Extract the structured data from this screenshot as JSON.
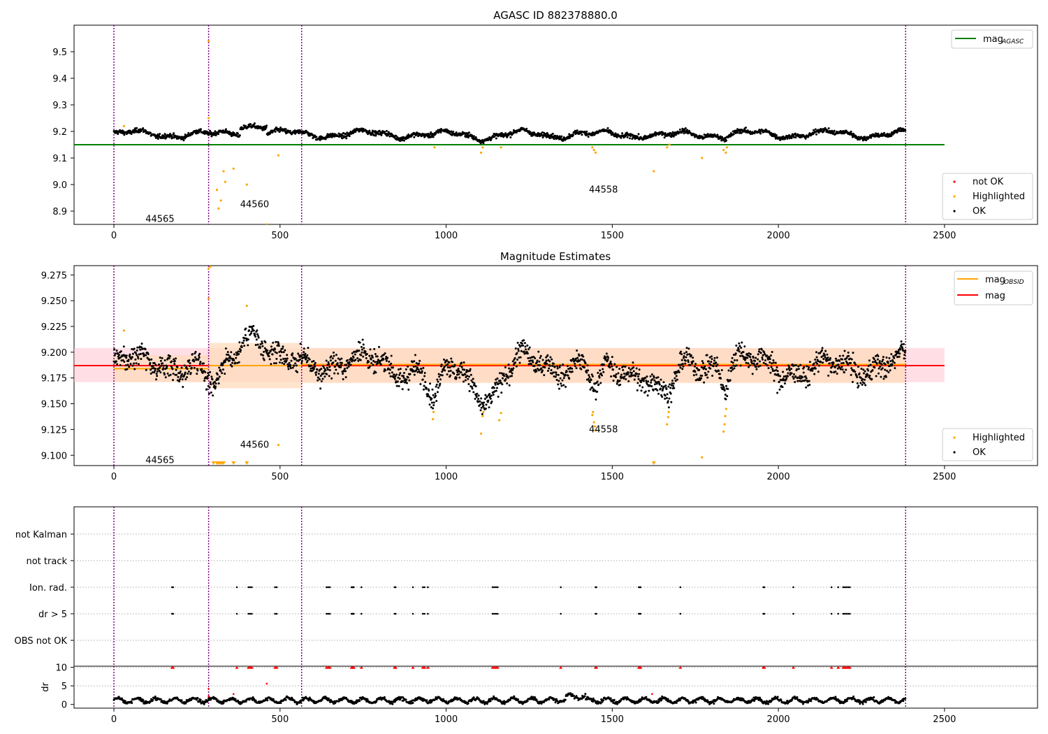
{
  "colors": {
    "ok": "#000000",
    "highlighted": "#ffa500",
    "not_ok": "#ff0000",
    "mag_agasc": "#008000",
    "mag_obsid": "#ffa500",
    "mag": "#ff0000",
    "obsid_boundary": "#800080",
    "mag_band": "#ffc0cb",
    "obsid_band": "#ffdab9"
  },
  "obsid_boundaries": [
    0,
    285,
    565,
    2383
  ],
  "chart_data": [
    {
      "type": "scatter",
      "title": "AGASC ID 882378880.0",
      "xlim": [
        -120,
        2780
      ],
      "ylim": [
        8.85,
        9.6
      ],
      "xticks": [
        0,
        500,
        1000,
        1500,
        2000,
        2500
      ],
      "yticks": [
        8.9,
        9.0,
        9.1,
        9.2,
        9.3,
        9.4,
        9.5
      ],
      "ytick_labels": [
        "8.9",
        "9.0",
        "9.1",
        "9.2",
        "9.3",
        "9.4",
        "9.5"
      ],
      "lines": [
        {
          "name": "mag_AGASC",
          "y": 9.15,
          "x": [
            -120,
            2500
          ]
        }
      ],
      "legend_lines": [
        "mag",
        "AGASC"
      ],
      "legend_points": [
        "not OK",
        "Highlighted",
        "OK"
      ],
      "obsid_labels": [
        {
          "text": "44565",
          "x": 95,
          "y": 8.87
        },
        {
          "text": "44560",
          "x": 380,
          "y": 8.925
        },
        {
          "text": "44558",
          "x": 1430,
          "y": 8.98
        }
      ],
      "highlighted_points": [
        [
          30,
          9.22
        ],
        [
          285,
          9.54
        ],
        [
          285,
          9.25
        ],
        [
          310,
          8.98
        ],
        [
          315,
          8.91
        ],
        [
          322,
          8.94
        ],
        [
          330,
          9.05
        ],
        [
          335,
          9.01
        ],
        [
          360,
          9.06
        ],
        [
          400,
          9.0
        ],
        [
          460,
          8.85
        ],
        [
          495,
          9.11
        ],
        [
          965,
          9.14
        ],
        [
          1105,
          9.12
        ],
        [
          1110,
          9.14
        ],
        [
          1165,
          9.14
        ],
        [
          1440,
          9.14
        ],
        [
          1445,
          9.13
        ],
        [
          1450,
          9.12
        ],
        [
          1625,
          9.05
        ],
        [
          1665,
          9.14
        ],
        [
          1672,
          9.15
        ],
        [
          1770,
          9.1
        ],
        [
          1835,
          9.13
        ],
        [
          1842,
          9.12
        ],
        [
          1845,
          9.14
        ]
      ]
    },
    {
      "type": "scatter",
      "title": "Magnitude Estimates",
      "xlim": [
        -120,
        2780
      ],
      "ylim": [
        9.09,
        9.284
      ],
      "xticks": [
        0,
        500,
        1000,
        1500,
        2000,
        2500
      ],
      "yticks": [
        9.1,
        9.125,
        9.15,
        9.175,
        9.2,
        9.225,
        9.25,
        9.275
      ],
      "ytick_labels": [
        "9.100",
        "9.125",
        "9.150",
        "9.175",
        "9.200",
        "9.225",
        "9.250",
        "9.275"
      ],
      "mag": 9.187,
      "mag_band": [
        9.171,
        9.204
      ],
      "obsid_mags": [
        {
          "x": [
            0,
            285
          ],
          "mag": 9.184,
          "band": [
            9.171,
            9.197
          ]
        },
        {
          "x": [
            285,
            565
          ],
          "mag": 9.187,
          "band": [
            9.165,
            9.209
          ]
        },
        {
          "x": [
            565,
            2383
          ],
          "mag": 9.188,
          "band": [
            9.17,
            9.204
          ]
        }
      ],
      "legend_lines": [
        "mag",
        "OBSID",
        "mag"
      ],
      "legend_points": [
        "Highlighted",
        "OK"
      ],
      "obsid_labels": [
        {
          "text": "44565",
          "x": 95,
          "y": 9.095
        },
        {
          "text": "44560",
          "x": 380,
          "y": 9.11
        },
        {
          "text": "44558",
          "x": 1430,
          "y": 9.125
        }
      ],
      "highlighted_points": [
        [
          30,
          9.221
        ],
        [
          285,
          9.281
        ],
        [
          290,
          9.283
        ],
        [
          285,
          9.252
        ],
        [
          400,
          9.245
        ],
        [
          495,
          9.11
        ],
        [
          960,
          9.135
        ],
        [
          962,
          9.142
        ],
        [
          1105,
          9.121
        ],
        [
          1110,
          9.138
        ],
        [
          1112,
          9.142
        ],
        [
          1160,
          9.134
        ],
        [
          1165,
          9.141
        ],
        [
          1440,
          9.139
        ],
        [
          1442,
          9.142
        ],
        [
          1445,
          9.132
        ],
        [
          1448,
          9.128
        ],
        [
          1450,
          9.124
        ],
        [
          1665,
          9.13
        ],
        [
          1668,
          9.137
        ],
        [
          1670,
          9.142
        ],
        [
          1770,
          9.098
        ],
        [
          1835,
          9.123
        ],
        [
          1838,
          9.13
        ],
        [
          1840,
          9.138
        ],
        [
          1843,
          9.145
        ]
      ],
      "clipped_points": [
        300,
        310,
        315,
        320,
        325,
        330,
        360,
        400,
        1625
      ]
    },
    {
      "type": "scatter",
      "title": "",
      "xlim": [
        -120,
        2780
      ],
      "categories": [
        "not Kalman",
        "not track",
        "Ion. rad.",
        "dr > 5",
        "OBS not OK"
      ],
      "flag_x": [
        175,
        178,
        370,
        405,
        410,
        415,
        485,
        490,
        640,
        645,
        650,
        715,
        718,
        720,
        722,
        745,
        845,
        848,
        900,
        930,
        935,
        945,
        1140,
        1145,
        1150,
        1155,
        1345,
        1450,
        1452,
        1580,
        1583,
        1585,
        1705,
        1955,
        1958,
        2045,
        2160,
        2180,
        2195,
        2200,
        2205,
        2210,
        2215
      ],
      "flag_rows": [
        "Ion. rad.",
        "dr > 5"
      ]
    },
    {
      "type": "line",
      "title": "",
      "xlim": [
        -120,
        2780
      ],
      "ylim": [
        -1,
        10.3
      ],
      "xticks": [
        0,
        500,
        1000,
        1500,
        2000,
        2500
      ],
      "yticks": [
        0,
        5,
        10
      ],
      "ytick_labels": [
        "0",
        "5",
        "10"
      ],
      "ylabel": "dr",
      "outliers": [
        [
          285,
          4.2
        ],
        [
          285,
          2.2
        ],
        [
          360,
          2.8
        ],
        [
          460,
          5.6
        ],
        [
          1620,
          2.8
        ]
      ]
    }
  ]
}
